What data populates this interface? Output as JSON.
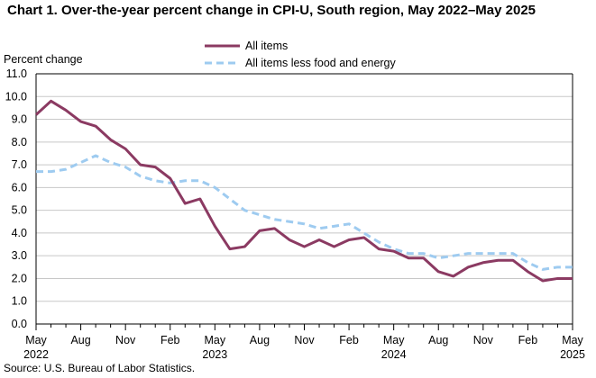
{
  "chart_data": {
    "type": "line",
    "title": "Chart 1. Over-the-year percent change in CPI-U, South region, May 2022–May 2025",
    "ylabel": "Percent change",
    "xlabel": "",
    "ylim": [
      0,
      11
    ],
    "yticks": [
      "0.0",
      "1.0",
      "2.0",
      "3.0",
      "4.0",
      "5.0",
      "6.0",
      "7.0",
      "8.0",
      "9.0",
      "10.0",
      "11.0"
    ],
    "grid": "horizontal",
    "legend_position": "top",
    "x": [
      "2022-05",
      "2022-06",
      "2022-07",
      "2022-08",
      "2022-09",
      "2022-10",
      "2022-11",
      "2022-12",
      "2023-01",
      "2023-02",
      "2023-03",
      "2023-04",
      "2023-05",
      "2023-06",
      "2023-07",
      "2023-08",
      "2023-09",
      "2023-10",
      "2023-11",
      "2023-12",
      "2024-01",
      "2024-02",
      "2024-03",
      "2024-04",
      "2024-05",
      "2024-06",
      "2024-07",
      "2024-08",
      "2024-09",
      "2024-10",
      "2024-11",
      "2024-12",
      "2025-01",
      "2025-02",
      "2025-03",
      "2025-04",
      "2025-05"
    ],
    "xtick_labels": [
      {
        "index": 0,
        "month": "May",
        "year": "2022"
      },
      {
        "index": 3,
        "month": "Aug",
        "year": ""
      },
      {
        "index": 6,
        "month": "Nov",
        "year": ""
      },
      {
        "index": 9,
        "month": "Feb",
        "year": ""
      },
      {
        "index": 12,
        "month": "May",
        "year": "2023"
      },
      {
        "index": 15,
        "month": "Aug",
        "year": ""
      },
      {
        "index": 18,
        "month": "Nov",
        "year": ""
      },
      {
        "index": 21,
        "month": "Feb",
        "year": ""
      },
      {
        "index": 24,
        "month": "May",
        "year": "2024"
      },
      {
        "index": 27,
        "month": "Aug",
        "year": ""
      },
      {
        "index": 30,
        "month": "Nov",
        "year": ""
      },
      {
        "index": 33,
        "month": "Feb",
        "year": ""
      },
      {
        "index": 36,
        "month": "May",
        "year": "2025"
      }
    ],
    "series": [
      {
        "name": "All items",
        "color": "#8b3a62",
        "style": "solid",
        "values": [
          9.2,
          9.8,
          9.4,
          8.9,
          8.7,
          8.1,
          7.7,
          7.0,
          6.9,
          6.4,
          5.3,
          5.5,
          4.3,
          3.3,
          3.4,
          4.1,
          4.2,
          3.7,
          3.4,
          3.7,
          3.4,
          3.7,
          3.8,
          3.3,
          3.2,
          2.9,
          2.9,
          2.3,
          2.1,
          2.5,
          2.7,
          2.8,
          2.8,
          2.3,
          1.9,
          2.0,
          2.0
        ]
      },
      {
        "name": "All items less food and energy",
        "color": "#9ecbf0",
        "style": "dashed",
        "values": [
          6.7,
          6.7,
          6.8,
          7.1,
          7.4,
          7.1,
          6.9,
          6.5,
          6.3,
          6.2,
          6.3,
          6.3,
          6.0,
          5.5,
          5.0,
          4.8,
          4.6,
          4.5,
          4.4,
          4.2,
          4.3,
          4.4,
          4.0,
          3.6,
          3.3,
          3.1,
          3.1,
          2.9,
          3.0,
          3.1,
          3.1,
          3.1,
          3.1,
          2.7,
          2.4,
          2.5,
          2.5
        ]
      }
    ]
  },
  "source": "Source: U.S. Bureau  of Labor Statistics."
}
